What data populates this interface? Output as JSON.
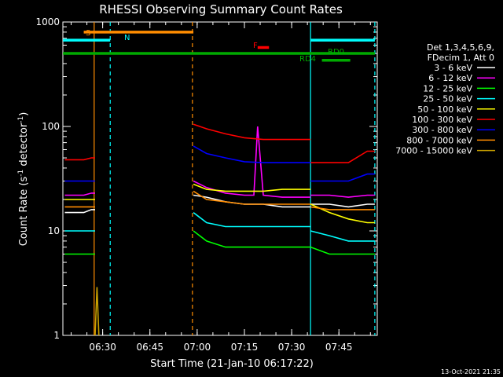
{
  "chart_data": {
    "type": "line",
    "title": "RHESSI Observing Summary Count Rates",
    "xlabel": "Start Time (21-Jan-10 06:17:22)",
    "ylabel_main": "Count Rate (s",
    "ylabel_sup1": "-1",
    "ylabel_mid": " detector",
    "ylabel_sup2": "-1",
    "ylabel_end": ")",
    "xlim": [
      6.2895,
      7.9528
    ],
    "ylim": [
      1,
      1000
    ],
    "yscale": "log",
    "x_ticks": [
      {
        "value": 6.5,
        "label": "06:30"
      },
      {
        "value": 6.75,
        "label": "06:45"
      },
      {
        "value": 7.0,
        "label": "07:00"
      },
      {
        "value": 7.25,
        "label": "07:15"
      },
      {
        "value": 7.5,
        "label": "07:30"
      },
      {
        "value": 7.75,
        "label": "07:45"
      }
    ],
    "y_ticks": [
      {
        "value": 1,
        "label": "1"
      },
      {
        "value": 10,
        "label": "10"
      },
      {
        "value": 100,
        "label": "100"
      },
      {
        "value": 1000,
        "label": "1000"
      }
    ],
    "legend_header": [
      "Det 1,3,4,5,6,9,",
      "FDecim 1, Att 0"
    ],
    "series": [
      {
        "name": "3 - 6 keV",
        "color": "#ffffff",
        "segments": [
          {
            "x": [
              6.3,
              6.36,
              6.4,
              6.44,
              6.46
            ],
            "y": [
              15,
              15,
              15,
              16,
              16
            ]
          },
          {
            "x": [
              6.98,
              7.05,
              7.15,
              7.25,
              7.35,
              7.45,
              7.55,
              7.6
            ],
            "y": [
              22,
              21,
              19,
              18,
              18,
              17,
              17,
              17
            ]
          },
          {
            "x": [
              7.6,
              7.7,
              7.8,
              7.9,
              7.94
            ],
            "y": [
              18,
              18,
              17,
              18,
              18
            ]
          }
        ]
      },
      {
        "name": "6 - 12 keV",
        "color": "#ff00ff",
        "segments": [
          {
            "x": [
              6.3,
              6.36,
              6.4,
              6.44,
              6.46
            ],
            "y": [
              22,
              22,
              22,
              23,
              23
            ]
          },
          {
            "x": [
              6.98,
              7.05,
              7.15,
              7.25,
              7.3,
              7.32,
              7.35,
              7.45,
              7.55,
              7.6
            ],
            "y": [
              30,
              26,
              23,
              22,
              22,
              100,
              22,
              21,
              21,
              21
            ]
          },
          {
            "x": [
              7.6,
              7.7,
              7.8,
              7.9,
              7.94
            ],
            "y": [
              22,
              22,
              21,
              22,
              22
            ]
          }
        ]
      },
      {
        "name": "12 - 25 keV",
        "color": "#00ff00",
        "segments": [
          {
            "x": [
              6.3,
              6.36,
              6.4,
              6.44,
              6.46
            ],
            "y": [
              6,
              6,
              6,
              6,
              6
            ]
          },
          {
            "x": [
              6.98,
              7.05,
              7.15,
              7.25,
              7.35,
              7.45,
              7.55,
              7.6
            ],
            "y": [
              10,
              8,
              7,
              7,
              7,
              7,
              7,
              7
            ]
          },
          {
            "x": [
              7.6,
              7.7,
              7.8,
              7.9,
              7.94
            ],
            "y": [
              7,
              6,
              6,
              6,
              6
            ]
          }
        ]
      },
      {
        "name": "25 - 50 keV",
        "color": "#00ffff",
        "segments": [
          {
            "x": [
              6.3,
              6.36,
              6.4,
              6.44,
              6.46
            ],
            "y": [
              10,
              10,
              10,
              10,
              10
            ]
          },
          {
            "x": [
              6.98,
              7.05,
              7.15,
              7.25,
              7.35,
              7.45,
              7.55,
              7.6
            ],
            "y": [
              15,
              12,
              11,
              11,
              11,
              11,
              11,
              11
            ]
          },
          {
            "x": [
              7.6,
              7.7,
              7.8,
              7.9,
              7.94
            ],
            "y": [
              10,
              9,
              8,
              8,
              8
            ]
          }
        ]
      },
      {
        "name": "50 - 100 keV",
        "color": "#ffff00",
        "segments": [
          {
            "x": [
              6.3,
              6.36,
              6.4,
              6.44,
              6.46
            ],
            "y": [
              20,
              20,
              20,
              20,
              20
            ]
          },
          {
            "x": [
              6.98,
              7.05,
              7.15,
              7.25,
              7.35,
              7.45,
              7.55,
              7.6
            ],
            "y": [
              28,
              25,
              24,
              24,
              24,
              25,
              25,
              25
            ]
          },
          {
            "x": [
              7.6,
              7.7,
              7.8,
              7.9,
              7.94
            ],
            "y": [
              18,
              15,
              13,
              12,
              12
            ]
          }
        ]
      },
      {
        "name": "100 - 300 keV",
        "color": "#ff0000",
        "segments": [
          {
            "x": [
              6.3,
              6.36,
              6.4,
              6.44,
              6.46
            ],
            "y": [
              48,
              48,
              48,
              50,
              50
            ]
          },
          {
            "x": [
              6.98,
              7.05,
              7.15,
              7.25,
              7.35,
              7.45,
              7.55,
              7.6
            ],
            "y": [
              105,
              95,
              85,
              78,
              75,
              75,
              75,
              75
            ]
          },
          {
            "x": [
              7.6,
              7.7,
              7.8,
              7.9,
              7.94
            ],
            "y": [
              45,
              45,
              45,
              58,
              58
            ]
          }
        ]
      },
      {
        "name": "300 - 800 keV",
        "color": "#0000ff",
        "segments": [
          {
            "x": [
              6.3,
              6.36,
              6.4,
              6.44,
              6.46
            ],
            "y": [
              30,
              30,
              30,
              30,
              30
            ]
          },
          {
            "x": [
              6.98,
              7.05,
              7.15,
              7.25,
              7.35,
              7.45,
              7.55,
              7.6
            ],
            "y": [
              65,
              55,
              50,
              46,
              45,
              45,
              45,
              45
            ]
          },
          {
            "x": [
              7.6,
              7.7,
              7.8,
              7.9,
              7.94
            ],
            "y": [
              30,
              30,
              30,
              35,
              35
            ]
          }
        ]
      },
      {
        "name": "800 - 7000 keV",
        "color": "#ff8c00",
        "segments": [
          {
            "x": [
              6.3,
              6.36,
              6.4,
              6.44,
              6.46
            ],
            "y": [
              17,
              17,
              17,
              17,
              17
            ]
          },
          {
            "x": [
              6.98,
              7.05,
              7.15,
              7.25,
              7.35,
              7.45,
              7.55,
              7.6
            ],
            "y": [
              24,
              20,
              19,
              18,
              18,
              18,
              18,
              18
            ]
          },
          {
            "x": [
              7.6,
              7.7,
              7.8,
              7.9,
              7.94
            ],
            "y": [
              17,
              16,
              16,
              16,
              16
            ]
          }
        ]
      },
      {
        "name": "7000 - 15000 keV",
        "color": "#c8a000",
        "segments": [
          {
            "x": [
              6.46,
              6.47,
              6.48
            ],
            "y": [
              1,
              2.9,
              1
            ]
          }
        ]
      }
    ],
    "flags": [
      {
        "name": "S",
        "color": "#ff8c00",
        "x": [
          6.4,
          6.98
        ],
        "y": 800
      },
      {
        "name": "N",
        "color": "#00ffff",
        "x": [
          6.29,
          6.54
        ],
        "y": 670
      },
      {
        "name": "N",
        "color": "#00ffff",
        "x": [
          7.6,
          7.94
        ],
        "y": 670
      },
      {
        "name": "RD0",
        "color": "#00aa00",
        "x": [
          6.29,
          7.94
        ],
        "y": 500
      },
      {
        "name": "RD4",
        "color": "#00aa00",
        "x": [
          7.66,
          7.81
        ],
        "y": 430
      },
      {
        "name": "F",
        "color": "#ff0000",
        "x": [
          7.32,
          7.38
        ],
        "y": 570
      }
    ],
    "vlines": [
      {
        "x": 6.455,
        "color": "#ff8c00",
        "style": "solid"
      },
      {
        "x": 6.54,
        "color": "#00ffff",
        "style": "dashed"
      },
      {
        "x": 6.975,
        "color": "#ff8c00",
        "style": "dashed"
      },
      {
        "x": 7.6,
        "color": "#00ffff",
        "style": "solid"
      },
      {
        "x": 7.94,
        "color": "#00ffff",
        "style": "dashed"
      }
    ]
  },
  "flag_labels": [
    {
      "text": "S",
      "color": "#ff8c00"
    },
    {
      "text": "N",
      "color": "#00ffff"
    },
    {
      "text": "F",
      "color": "#ff0000"
    },
    {
      "text": "RD0",
      "color": "#00aa00"
    },
    {
      "text": "RD4",
      "color": "#00aa00"
    }
  ],
  "timestamp": "13-Oct-2021 21:35"
}
